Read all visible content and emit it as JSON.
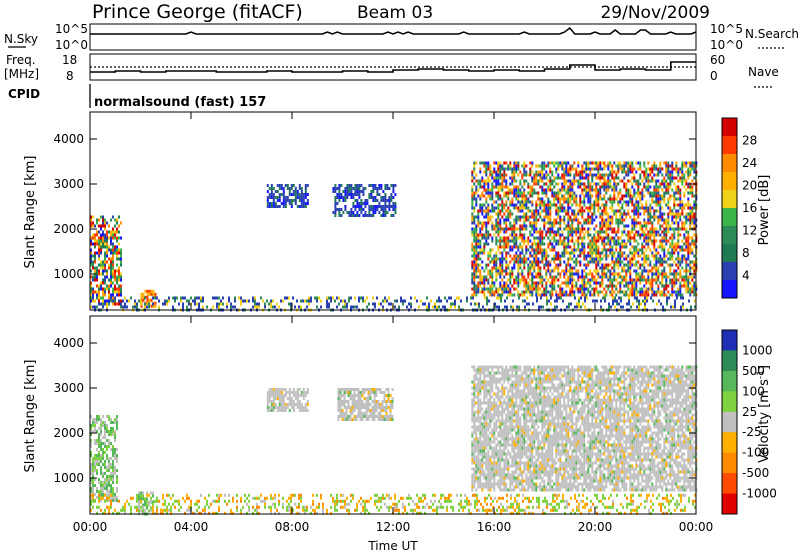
{
  "header": {
    "station": "Prince George (fitACF)",
    "beam": "Beam 03",
    "date": "29/Nov/2009"
  },
  "top_panels": {
    "nsky_label": "N.Sky",
    "nsky_ticks": [
      "10^5",
      "10^0"
    ],
    "nsearch_label": "N.Search",
    "nsearch_ticks": [
      "10^5",
      "10^0"
    ],
    "freq_label": "Freq.",
    "freq_unit": "[MHz]",
    "freq_ticks": [
      "18",
      "8"
    ],
    "nave_label": "Nave",
    "nave_ticks": [
      "60",
      "0"
    ],
    "cpid_label": "CPID",
    "cpid_text": "normalsound (fast) 157"
  },
  "chart_data": [
    {
      "type": "heatmap",
      "name": "power-panel",
      "ylabel": "Slant Range [km]",
      "xlabel": "",
      "x_ticks": [
        "00:00",
        "04:00",
        "08:00",
        "12:00",
        "16:00",
        "20:00",
        "00:00"
      ],
      "y_ticks": [
        1000,
        2000,
        3000,
        4000
      ],
      "ylim": [
        200,
        4600
      ],
      "xlim_hours": [
        0,
        24
      ],
      "colorbar": {
        "label": "Power [dB]",
        "ticks": [
          "28",
          "24",
          "20",
          "16",
          "12",
          "8",
          "4"
        ],
        "colors": [
          "#d40000",
          "#ff3b00",
          "#ff8c00",
          "#ffb000",
          "#f0d21a",
          "#3cb44a",
          "#2e8b57",
          "#1f7a54",
          "#2a3fb0",
          "#1515ff"
        ]
      },
      "regions": [
        {
          "t0": 0.0,
          "t1": 1.2,
          "r0": 300,
          "r1": 2300,
          "level": "mixed"
        },
        {
          "t0": 2.0,
          "t1": 2.6,
          "r0": 250,
          "r1": 650,
          "level": "high"
        },
        {
          "t0": 7.0,
          "t1": 8.6,
          "r0": 2500,
          "r1": 3000,
          "level": "low"
        },
        {
          "t0": 9.6,
          "t1": 12.1,
          "r0": 2300,
          "r1": 3000,
          "level": "low"
        },
        {
          "t0": 15.1,
          "t1": 24.0,
          "r0": 500,
          "r1": 3500,
          "level": "mixed"
        },
        {
          "t0": 0.0,
          "t1": 24.0,
          "r0": 200,
          "r1": 500,
          "level": "ground"
        }
      ]
    },
    {
      "type": "heatmap",
      "name": "velocity-panel",
      "ylabel": "Slant Range [km]",
      "xlabel": "Time UT",
      "x_ticks": [
        "00:00",
        "04:00",
        "08:00",
        "12:00",
        "16:00",
        "20:00",
        "00:00"
      ],
      "y_ticks": [
        1000,
        2000,
        3000,
        4000
      ],
      "ylim": [
        200,
        4600
      ],
      "xlim_hours": [
        0,
        24
      ],
      "colorbar": {
        "label": "Velocity [m s",
        "label_sup": "-1",
        "label_end": "]",
        "ticks": [
          "1000",
          "500",
          "100",
          "25",
          "-25",
          "-100",
          "-500",
          "-1000"
        ],
        "colors": [
          "#1e2fb4",
          "#2e8b57",
          "#56b85a",
          "#7ed13f",
          "#c0c0c0",
          "#ffb000",
          "#ff8c00",
          "#ff4b00",
          "#e00000"
        ]
      },
      "regions": [
        {
          "t0": 0.0,
          "t1": 1.1,
          "r0": 500,
          "r1": 2400,
          "level": "mixed"
        },
        {
          "t0": 1.9,
          "t1": 2.5,
          "r0": 200,
          "r1": 700,
          "level": "mixed"
        },
        {
          "t0": 7.0,
          "t1": 8.6,
          "r0": 2500,
          "r1": 3000,
          "level": "grey"
        },
        {
          "t0": 9.8,
          "t1": 12.0,
          "r0": 2300,
          "r1": 3000,
          "level": "grey"
        },
        {
          "t0": 15.1,
          "t1": 24.0,
          "r0": 700,
          "r1": 3500,
          "level": "grey"
        },
        {
          "t0": 0.0,
          "t1": 24.0,
          "r0": 200,
          "r1": 650,
          "level": "ground"
        }
      ]
    }
  ]
}
